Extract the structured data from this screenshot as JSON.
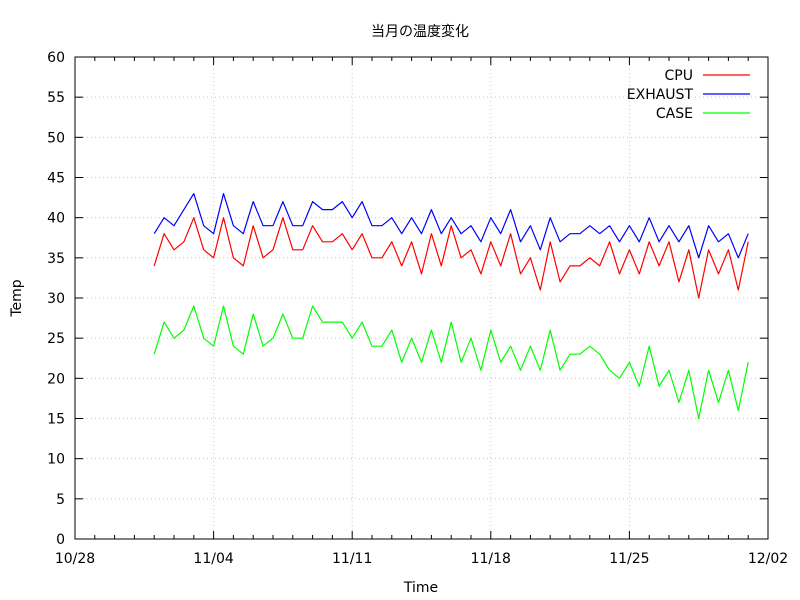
{
  "chart_data": {
    "type": "line",
    "title": "当月の温度変化",
    "xlabel": "Time",
    "ylabel": "Temp",
    "xlim": [
      "2011-10-28",
      "2011-12-02"
    ],
    "ylim": [
      0,
      60
    ],
    "x_tick_labels": [
      "10/28",
      "11/04",
      "11/11",
      "11/18",
      "11/25",
      "12/02"
    ],
    "y_ticks": [
      0,
      5,
      10,
      15,
      20,
      25,
      30,
      35,
      40,
      45,
      50,
      55,
      60
    ],
    "grid": true,
    "legend_position": "top-right",
    "series": [
      {
        "name": "CPU",
        "color": "#ff0000",
        "x": [
          "2011-11-01",
          "2011-11-01T12",
          "2011-11-02",
          "2011-11-02T12",
          "2011-11-03",
          "2011-11-03T12",
          "2011-11-04",
          "2011-11-04T12",
          "2011-11-05",
          "2011-11-05T12",
          "2011-11-06",
          "2011-11-06T12",
          "2011-11-07",
          "2011-11-07T12",
          "2011-11-08",
          "2011-11-08T12",
          "2011-11-09",
          "2011-11-09T12",
          "2011-11-10",
          "2011-11-10T12",
          "2011-11-11",
          "2011-11-11T12",
          "2011-11-12",
          "2011-11-12T12",
          "2011-11-13",
          "2011-11-13T12",
          "2011-11-14",
          "2011-11-14T12",
          "2011-11-15",
          "2011-11-15T12",
          "2011-11-16",
          "2011-11-16T12",
          "2011-11-17",
          "2011-11-17T12",
          "2011-11-18",
          "2011-11-18T12",
          "2011-11-19",
          "2011-11-19T12",
          "2011-11-20",
          "2011-11-20T12",
          "2011-11-21",
          "2011-11-21T12",
          "2011-11-22",
          "2011-11-22T12",
          "2011-11-23",
          "2011-11-23T12",
          "2011-11-24",
          "2011-11-24T12",
          "2011-11-25",
          "2011-11-25T12",
          "2011-11-26",
          "2011-11-26T12",
          "2011-11-27",
          "2011-11-27T12",
          "2011-11-28",
          "2011-11-28T12",
          "2011-11-29",
          "2011-11-29T12",
          "2011-11-30",
          "2011-11-30T12",
          "2011-12-01"
        ],
        "values": [
          34,
          38,
          36,
          37,
          40,
          36,
          35,
          40,
          35,
          34,
          39,
          35,
          36,
          40,
          36,
          36,
          39,
          37,
          37,
          38,
          36,
          38,
          35,
          35,
          37,
          34,
          37,
          33,
          38,
          34,
          39,
          35,
          36,
          33,
          37,
          34,
          38,
          33,
          35,
          31,
          37,
          32,
          34,
          34,
          35,
          34,
          37,
          33,
          36,
          33,
          37,
          34,
          37,
          32,
          36,
          30,
          36,
          33,
          36,
          31,
          37
        ]
      },
      {
        "name": "EXHAUST",
        "color": "#0000ff",
        "x": [
          "2011-11-01",
          "2011-11-01T12",
          "2011-11-02",
          "2011-11-02T12",
          "2011-11-03",
          "2011-11-03T12",
          "2011-11-04",
          "2011-11-04T12",
          "2011-11-05",
          "2011-11-05T12",
          "2011-11-06",
          "2011-11-06T12",
          "2011-11-07",
          "2011-11-07T12",
          "2011-11-08",
          "2011-11-08T12",
          "2011-11-09",
          "2011-11-09T12",
          "2011-11-10",
          "2011-11-10T12",
          "2011-11-11",
          "2011-11-11T12",
          "2011-11-12",
          "2011-11-12T12",
          "2011-11-13",
          "2011-11-13T12",
          "2011-11-14",
          "2011-11-14T12",
          "2011-11-15",
          "2011-11-15T12",
          "2011-11-16",
          "2011-11-16T12",
          "2011-11-17",
          "2011-11-17T12",
          "2011-11-18",
          "2011-11-18T12",
          "2011-11-19",
          "2011-11-19T12",
          "2011-11-20",
          "2011-11-20T12",
          "2011-11-21",
          "2011-11-21T12",
          "2011-11-22",
          "2011-11-22T12",
          "2011-11-23",
          "2011-11-23T12",
          "2011-11-24",
          "2011-11-24T12",
          "2011-11-25",
          "2011-11-25T12",
          "2011-11-26",
          "2011-11-26T12",
          "2011-11-27",
          "2011-11-27T12",
          "2011-11-28",
          "2011-11-28T12",
          "2011-11-29",
          "2011-11-29T12",
          "2011-11-30",
          "2011-11-30T12",
          "2011-12-01"
        ],
        "values": [
          38,
          40,
          39,
          41,
          43,
          39,
          38,
          43,
          39,
          38,
          42,
          39,
          39,
          42,
          39,
          39,
          42,
          41,
          41,
          42,
          40,
          42,
          39,
          39,
          40,
          38,
          40,
          38,
          41,
          38,
          40,
          38,
          39,
          37,
          40,
          38,
          41,
          37,
          39,
          36,
          40,
          37,
          38,
          38,
          39,
          38,
          39,
          37,
          39,
          37,
          40,
          37,
          39,
          37,
          39,
          35,
          39,
          37,
          38,
          35,
          38
        ]
      },
      {
        "name": "CASE",
        "color": "#00ff00",
        "x": [
          "2011-11-01",
          "2011-11-01T12",
          "2011-11-02",
          "2011-11-02T12",
          "2011-11-03",
          "2011-11-03T12",
          "2011-11-04",
          "2011-11-04T12",
          "2011-11-05",
          "2011-11-05T12",
          "2011-11-06",
          "2011-11-06T12",
          "2011-11-07",
          "2011-11-07T12",
          "2011-11-08",
          "2011-11-08T12",
          "2011-11-09",
          "2011-11-09T12",
          "2011-11-10",
          "2011-11-10T12",
          "2011-11-11",
          "2011-11-11T12",
          "2011-11-12",
          "2011-11-12T12",
          "2011-11-13",
          "2011-11-13T12",
          "2011-11-14",
          "2011-11-14T12",
          "2011-11-15",
          "2011-11-15T12",
          "2011-11-16",
          "2011-11-16T12",
          "2011-11-17",
          "2011-11-17T12",
          "2011-11-18",
          "2011-11-18T12",
          "2011-11-19",
          "2011-11-19T12",
          "2011-11-20",
          "2011-11-20T12",
          "2011-11-21",
          "2011-11-21T12",
          "2011-11-22",
          "2011-11-22T12",
          "2011-11-23",
          "2011-11-23T12",
          "2011-11-24",
          "2011-11-24T12",
          "2011-11-25",
          "2011-11-25T12",
          "2011-11-26",
          "2011-11-26T12",
          "2011-11-27",
          "2011-11-27T12",
          "2011-11-28",
          "2011-11-28T12",
          "2011-11-29",
          "2011-11-29T12",
          "2011-11-30",
          "2011-11-30T12",
          "2011-12-01"
        ],
        "values": [
          23,
          27,
          25,
          26,
          29,
          25,
          24,
          29,
          24,
          23,
          28,
          24,
          25,
          28,
          25,
          25,
          29,
          27,
          27,
          27,
          25,
          27,
          24,
          24,
          26,
          22,
          25,
          22,
          26,
          22,
          27,
          22,
          25,
          21,
          26,
          22,
          24,
          21,
          24,
          21,
          26,
          21,
          23,
          23,
          24,
          23,
          21,
          20,
          22,
          19,
          24,
          19,
          21,
          17,
          21,
          15,
          21,
          17,
          21,
          16,
          22
        ]
      }
    ]
  }
}
